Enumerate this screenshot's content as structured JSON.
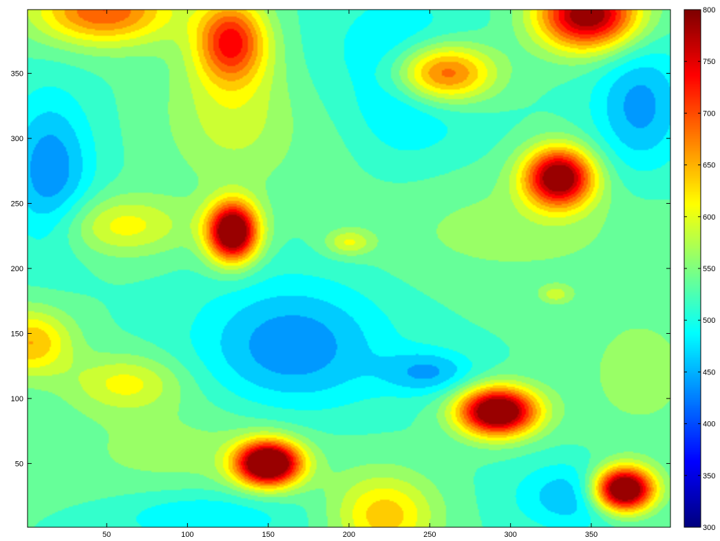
{
  "chart_data": {
    "type": "heatmap",
    "subtype": "filled-contour",
    "colormap": "jet",
    "grid": false,
    "legend": "colorbar-right",
    "xlabel": "",
    "ylabel": "",
    "title": "",
    "xlim": [
      1,
      399
    ],
    "ylim": [
      1,
      399
    ],
    "clim": [
      300,
      800
    ],
    "contour_levels": [
      300,
      325,
      350,
      375,
      400,
      425,
      450,
      475,
      500,
      525,
      550,
      575,
      600,
      625,
      650,
      675,
      700,
      725,
      750,
      775,
      800
    ],
    "x_ticks": [
      "50",
      "100",
      "150",
      "200",
      "250",
      "300",
      "350"
    ],
    "y_ticks": [
      "50",
      "100",
      "150",
      "200",
      "250",
      "300",
      "350"
    ],
    "colorbar_ticks": [
      "300",
      "350",
      "400",
      "450",
      "500",
      "550",
      "600",
      "650",
      "700",
      "750",
      "800"
    ],
    "baseline_value": 525,
    "features": [
      {
        "kind": "peak",
        "x": 128,
        "y": 228,
        "peak": 860,
        "sx": 11,
        "sy": 16
      },
      {
        "kind": "peak",
        "x": 150,
        "y": 50,
        "peak": 880,
        "sx": 14,
        "sy": 12
      },
      {
        "kind": "peak",
        "x": 292,
        "y": 90,
        "peak": 860,
        "sx": 17,
        "sy": 13
      },
      {
        "kind": "peak",
        "x": 370,
        "y": 30,
        "peak": 890,
        "sx": 13,
        "sy": 12
      },
      {
        "kind": "peak",
        "x": 330,
        "y": 270,
        "peak": 820,
        "sx": 15,
        "sy": 16
      },
      {
        "kind": "peak",
        "x": 348,
        "y": 395,
        "peak": 810,
        "sx": 22,
        "sy": 19
      },
      {
        "kind": "peak",
        "x": 258,
        "y": 350,
        "peak": 730,
        "sx": 22,
        "sy": 16
      },
      {
        "kind": "peak",
        "x": 127,
        "y": 375,
        "peak": 720,
        "sx": 15,
        "sy": 22
      },
      {
        "kind": "peak",
        "x": 48,
        "y": 398,
        "peak": 700,
        "sx": 30,
        "sy": 18
      },
      {
        "kind": "peak",
        "x": 3,
        "y": 143,
        "peak": 650,
        "sx": 18,
        "sy": 18
      },
      {
        "kind": "peak",
        "x": 222,
        "y": 10,
        "peak": 640,
        "sx": 22,
        "sy": 22
      },
      {
        "kind": "peak",
        "x": 60,
        "y": 233,
        "peak": 610,
        "sx": 28,
        "sy": 16
      },
      {
        "kind": "peak",
        "x": 62,
        "y": 112,
        "peak": 605,
        "sx": 24,
        "sy": 15
      },
      {
        "kind": "peak",
        "x": 200,
        "y": 220,
        "peak": 600,
        "sx": 10,
        "sy": 7
      },
      {
        "kind": "peak",
        "x": 328,
        "y": 180,
        "peak": 580,
        "sx": 7,
        "sy": 5
      },
      {
        "kind": "peak",
        "x": 130,
        "y": 320,
        "peak": 590,
        "sx": 30,
        "sy": 40
      },
      {
        "kind": "peak",
        "x": 300,
        "y": 230,
        "peak": 560,
        "sx": 60,
        "sy": 30
      },
      {
        "kind": "peak",
        "x": 380,
        "y": 120,
        "peak": 560,
        "sx": 30,
        "sy": 40
      },
      {
        "kind": "peak",
        "x": 100,
        "y": 60,
        "peak": 560,
        "sx": 60,
        "sy": 30
      },
      {
        "kind": "peak",
        "x": 200,
        "y": 330,
        "peak": 560,
        "sx": 20,
        "sy": 40
      },
      {
        "kind": "dip",
        "x": 15,
        "y": 275,
        "peak": 430,
        "sx": 18,
        "sy": 40
      },
      {
        "kind": "dip",
        "x": 165,
        "y": 140,
        "peak": 430,
        "sx": 40,
        "sy": 35
      },
      {
        "kind": "dip",
        "x": 225,
        "y": 345,
        "peak": 440,
        "sx": 35,
        "sy": 40
      },
      {
        "kind": "dip",
        "x": 380,
        "y": 325,
        "peak": 440,
        "sx": 20,
        "sy": 35
      },
      {
        "kind": "dip",
        "x": 250,
        "y": 120,
        "peak": 450,
        "sx": 20,
        "sy": 12
      },
      {
        "kind": "dip",
        "x": 340,
        "y": 25,
        "peak": 450,
        "sx": 25,
        "sy": 18
      },
      {
        "kind": "dip",
        "x": 110,
        "y": 10,
        "peak": 470,
        "sx": 40,
        "sy": 15
      }
    ]
  }
}
